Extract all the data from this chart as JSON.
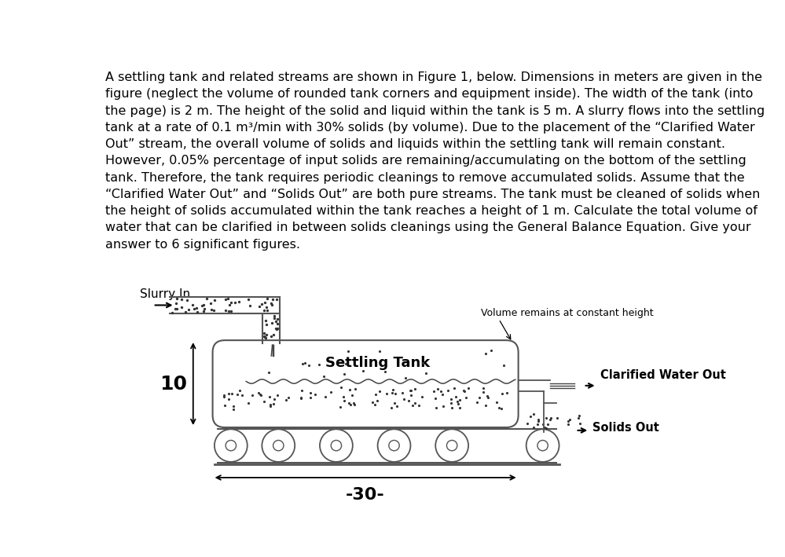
{
  "background_color": "#ffffff",
  "text_color": "#000000",
  "paragraph_text": "A settling tank and related streams are shown in Figure 1, below. Dimensions in meters are given in the\nfigure (neglect the volume of rounded tank corners and equipment inside). The width of the tank (into\nthe page) is 2 m. The height of the solid and liquid within the tank is 5 m. A slurry flows into the settling\ntank at a rate of 0.1 m³/min with 30% solids (by volume). Due to the placement of the “Clarified Water\nOut” stream, the overall volume of solids and liquids within the settling tank will remain constant.\nHowever, 0.05% percentage of input solids are remaining/accumulating on the bottom of the settling\ntank. Therefore, the tank requires periodic cleanings to remove accumulated solids. Assume that the\n“Clarified Water Out” and “Solids Out” are both pure streams. The tank must be cleaned of solids when\nthe height of solids accumulated within the tank reaches a height of 1 m. Calculate the total volume of\nwater that can be clarified in between solids cleanings using the General Balance Equation. Give your\nanswer to 6 significant figures.",
  "para_fontsize": 11.5,
  "label_slurry_in": "Slurry In",
  "label_settling_tank": "Settling Tank",
  "label_clarified_water": "Clarified Water Out",
  "label_solids_out": "Solids Out",
  "label_volume": "Volume remains at constant height",
  "label_10": "10",
  "label_30": "-30-"
}
